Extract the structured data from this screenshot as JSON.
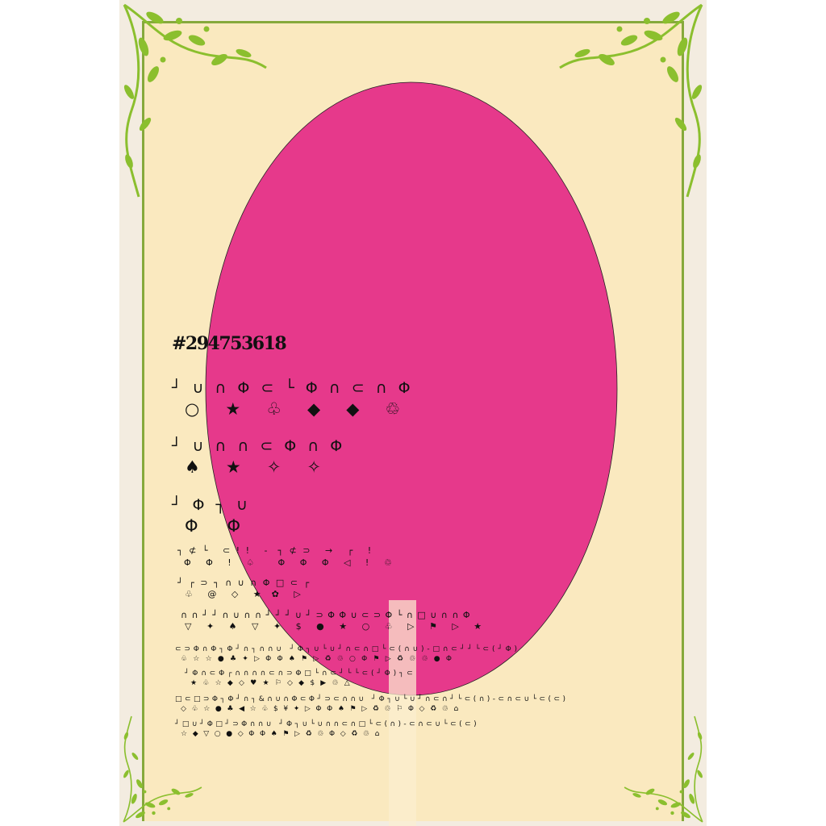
{
  "poster": {
    "code": "#294753618",
    "colors": {
      "background": "#f3ece0",
      "panel": "#fae9bf",
      "border": "#86a93c",
      "vine": "#8bbf2e",
      "ellipse": "#e6398b",
      "stripe": "#fbeed0"
    },
    "icons": [
      "vine-top-left-icon",
      "vine-top-right-icon",
      "vine-bottom-left-icon",
      "vine-bottom-right-icon"
    ],
    "glyph_rows": [
      "┘ ∪ ∩ Φ ⊂ └ Φ ∩ ⊂ ∩ Φ",
      "○   ★   ♧   ◆   ◆   ♲",
      "┘ ∪ ∩ ∩ ⊂ Φ ∩ Φ",
      "♠   ★   ✧   ✧",
      "┘ Φ ┐ ∪",
      "Φ   Φ",
      "┐ ⊄ └   ⊂ ! !   -  ┐ ⊄ ⊃   →   ┌   !",
      "Φ   Φ   !   ♤     Φ   Φ   Φ   ◁   !   ♲",
      "┘ ┌ ⊃ ┐ ∩ ∪ ∩ Φ □ ⊂ ┌",
      "♧   @   ◇   ★  ✿   ▷",
      "∩ ∩ ┘ ┘ ∩ ∪ ∩ ∩ ┘ ┘ ┘ ∪ ┘ ⊃ Φ Φ ∪ ⊂ ⊃ Φ └ ∩ □ ∪ ∩ ∩ Φ",
      "▽   ✦   ♠   ▽   ✦   $   ●   ★   ○   ♧   ▷   ⚑   ▷   ★",
      "⊂ ⊃ Φ ∩ Φ ┐ Φ ┘ ∩ ┐ ∩ ∩ ∪   ┘ Φ ┐ ∪ └ ∪ ┘ ∩ ⊂ ∩ □ └ ⊂ ( ∩ ∪ ) - □ ∩ ⊂ ┘ ┘ └ ⊂ ( ┘ Φ )",
      "♧  ☆  ☆  ●  ♣  ✦  ▷  Φ  Φ  ♠  ⚑  ▷  ♻  ♲  ○  Φ  ⚑  ▷  ♻  ♲  ♲  ●  Φ",
      "┘ Φ ∩ ⊂ Φ ┌ ∩ ∩ ∩ ∩ ⊂ ∩ ⊃ Φ □ └ ∩ ⊂ ┘ └ └ ⊂ ( ┘ Φ ) ┐ ⊂",
      "★  ♧  ☆  ◆  ◇  ♥  ★  ⚐  ◇  ◆  $  ▶  ♲  △",
      "□ ⊂ □ ⊃ Φ ┐ Φ ┘ ∩ ┐ & ∩ ∪ ∩ Φ ⊂ Φ ┘ ⊃ ⊂ ∩ ∩ ∪   ┘ Φ ┐ ∪ └ ∪ ┘ ∩ ⊂ ∩ ┘ └ ⊂ ( ∩ ) - ⊂ ∩ ⊂ ∪ └ ⊂ ( ⊂ )",
      "◇  ♧  ☆  ●  ♣  ◀  ☆  ♧  $  ¥  ✦  ▷  Φ  Φ  ♠  ⚑  ▷  ♻  ♲  ⚐  Φ  ◇  ♻  ♲  ⌂",
      "┘ □ ∪ ┘ Φ □ ┘ ⊃ Φ ∩ ∩ ∪   ┘ Φ ┐ ∪ └ ∪ ∩ ∩ ⊂ ∩ □ └ ⊂ ( ∩ ) - ⊂ ∩ ⊂ ∪ └ ⊂ ( ⊂ )",
      "☆  ◆  ▽  ○  ●  ◇  Φ  Φ  ♠  ⚑  ▷  ♻  ♲  Φ  ◇  ♻  ♲  ⌂"
    ]
  }
}
